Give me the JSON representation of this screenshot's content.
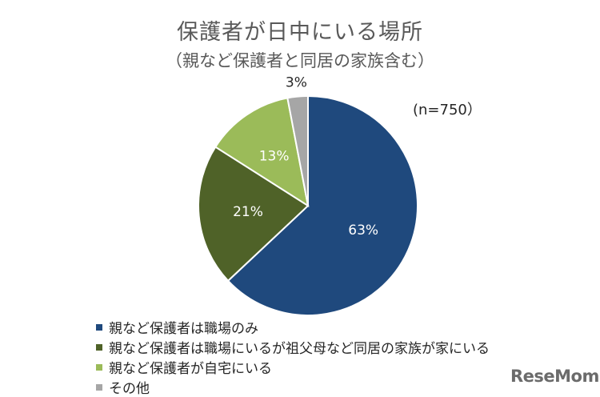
{
  "chart_data": {
    "type": "pie",
    "title": "保護者が日中にいる場所",
    "subtitle": "（親など保護者と同居の家族含む）",
    "note": "(n=750）",
    "slices": [
      {
        "label": "親など保護者は職場のみ",
        "value": 63,
        "value_label": "63%",
        "color": "#1f497d"
      },
      {
        "label": "親など保護者は職場にいるが祖父母など同居の家族が家にいる",
        "value": 21,
        "value_label": "21%",
        "color": "#4f6228"
      },
      {
        "label": "親など保護者が自宅にいる",
        "value": 13,
        "value_label": "13%",
        "color": "#9bbb59"
      },
      {
        "label": "その他",
        "value": 3,
        "value_label": "3%",
        "color": "#a6a6a6"
      }
    ],
    "legend_position": "bottom-left"
  },
  "watermark": "ReseMom"
}
